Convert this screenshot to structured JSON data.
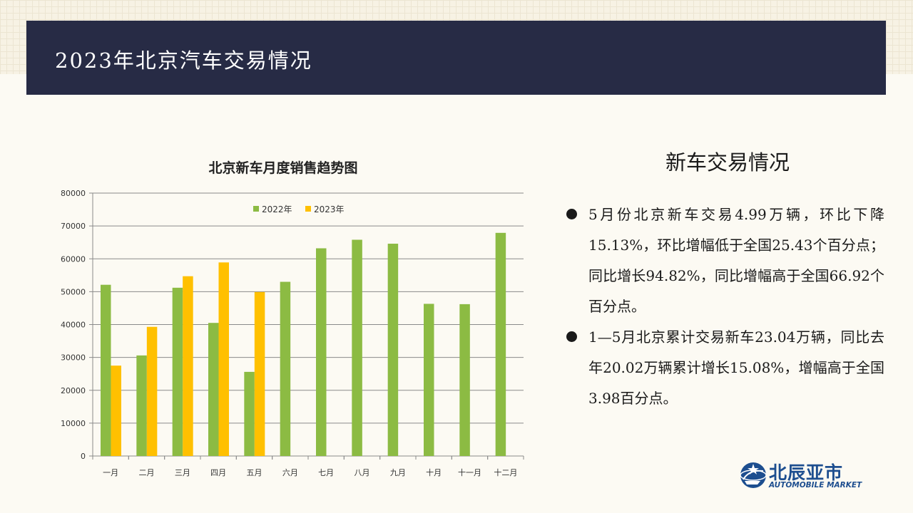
{
  "header": {
    "title": "2023年北京汽车交易情况"
  },
  "chart_data": {
    "type": "bar",
    "title": "北京新车月度销售趋势图",
    "xlabel": "",
    "ylabel": "",
    "ylim": [
      0,
      80000
    ],
    "yticks": [
      0,
      10000,
      20000,
      30000,
      40000,
      50000,
      60000,
      70000,
      80000
    ],
    "ytick_labels": [
      "0",
      "10000",
      "20000",
      "30000",
      "40000",
      "50000",
      "60000",
      "70000",
      "80000"
    ],
    "categories": [
      "一月",
      "二月",
      "三月",
      "四月",
      "五月",
      "六月",
      "七月",
      "八月",
      "九月",
      "十月",
      "十一月",
      "十二月"
    ],
    "series": [
      {
        "name": "2022年",
        "color": "#8cbb43",
        "values": [
          52100,
          30600,
          51200,
          40500,
          25600,
          53000,
          63200,
          65800,
          64600,
          46300,
          46200,
          67900
        ]
      },
      {
        "name": "2023年",
        "color": "#ffc000",
        "values": [
          27500,
          39300,
          54700,
          58900,
          49900,
          null,
          null,
          null,
          null,
          null,
          null,
          null
        ]
      }
    ],
    "grid": true,
    "legend": "top-center"
  },
  "section": {
    "title": "新车交易情况",
    "bullets": [
      "5月份北京新车交易4.99万辆，环比下降15.13%，环比增幅低于全国25.43个百分点；同比增长94.82%，同比增幅高于全国66.92个百分点。",
      "1—5月北京累计交易新车23.04万辆，同比去年20.02万辆累计增长15.08%，增幅高于全国3.98百分点。"
    ]
  },
  "logo": {
    "name": "北辰亚市",
    "subtitle": "AUTOMOBILE MARKET",
    "color": "#1d4e8f",
    "icon": "globe-car-icon"
  }
}
